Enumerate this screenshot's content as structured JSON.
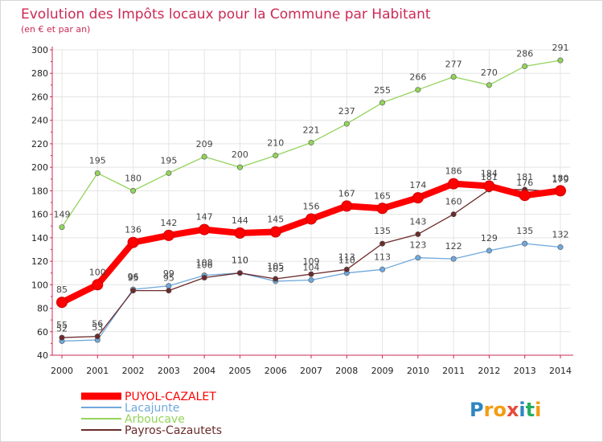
{
  "chart_data": {
    "type": "line",
    "title": "Evolution des Impôts locaux pour la Commune par Habitant",
    "subtitle": "(en € et par an)",
    "x": [
      "2000",
      "2001",
      "2002",
      "2003",
      "2004",
      "2005",
      "2006",
      "2007",
      "2008",
      "2009",
      "2010",
      "2011",
      "2012",
      "2013",
      "2014"
    ],
    "ylim": [
      40,
      300
    ],
    "yticks": [
      "40",
      "60",
      "80",
      "100",
      "120",
      "140",
      "160",
      "180",
      "200",
      "220",
      "240",
      "260",
      "280",
      "300"
    ],
    "grid": true,
    "legend_position": "bottom-left",
    "series": [
      {
        "name": "PUYOL-CAZALET",
        "color": "#ff0000",
        "values": [
          85,
          100,
          136,
          142,
          147,
          144,
          145,
          156,
          167,
          165,
          174,
          186,
          184,
          176,
          180
        ]
      },
      {
        "name": "Lacajunte",
        "color": "#6fa8dc",
        "values": [
          52,
          53,
          96,
          99,
          108,
          110,
          103,
          104,
          110,
          113,
          123,
          122,
          129,
          135,
          132
        ]
      },
      {
        "name": "Arboucave",
        "color": "#93d35b",
        "values": [
          149,
          195,
          180,
          195,
          209,
          200,
          210,
          221,
          237,
          255,
          266,
          277,
          270,
          286,
          291
        ]
      },
      {
        "name": "Payros-Cazautets",
        "color": "#6b2b2b",
        "values": [
          55,
          56,
          95,
          95,
          106,
          110,
          105,
          109,
          113,
          135,
          143,
          160,
          181,
          181,
          179
        ]
      }
    ]
  },
  "branding": {
    "logo_text": "Proxiti",
    "logo_letters": [
      "P",
      "r",
      "o",
      "x",
      "i",
      "t",
      "i"
    ],
    "logo_colors": [
      "#2e86c1",
      "#f39c12",
      "#f39c12",
      "#e74c3c",
      "#2e86c1",
      "#27ae60",
      "#f39c12"
    ]
  }
}
